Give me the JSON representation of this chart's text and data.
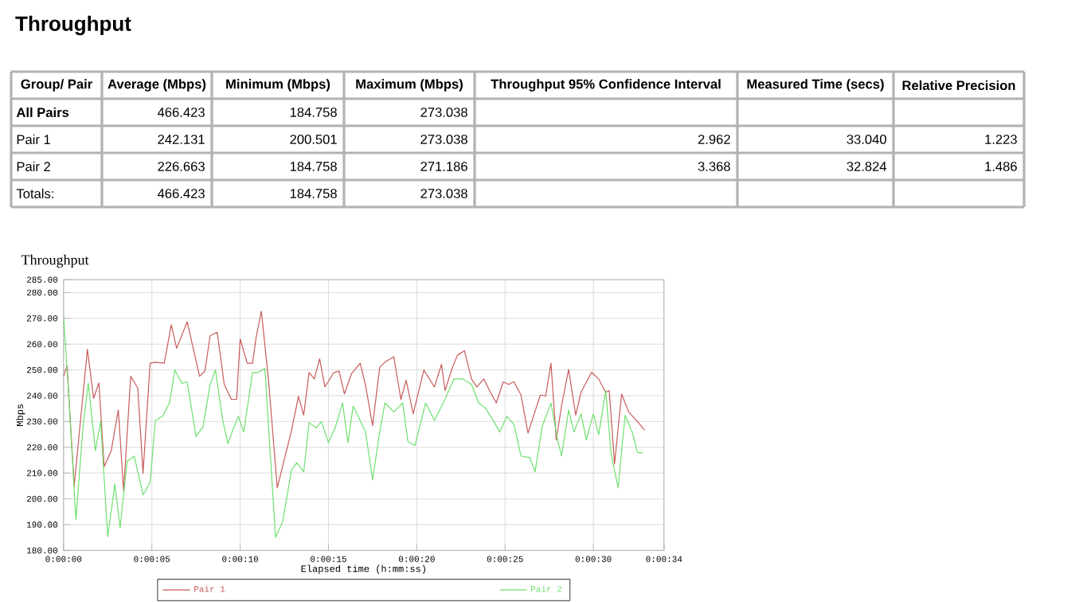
{
  "chart_data": [
    {
      "type": "other",
      "title": "Throughput",
      "categories": [
        "Group/ Pair",
        "Average (Mbps)",
        "Minimum (Mbps)",
        "Maximum (Mbps)",
        "Throughput 95% Confidence Interval",
        "Measured Time (secs)",
        "Relative Precision"
      ],
      "y_categories": [
        "All Pairs",
        "Pair 1",
        "Pair 2",
        "Totals:"
      ],
      "cell_labels": [
        [
          "466.423",
          "184.758",
          "273.038",
          null,
          null,
          null
        ],
        [
          "242.131",
          "200.501",
          "273.038",
          "2.962",
          "33.040",
          "1.223"
        ],
        [
          "226.663",
          "184.758",
          "271.186",
          "3.368",
          "32.824",
          "1.486"
        ],
        [
          "466.423",
          "184.758",
          "273.038",
          null,
          null,
          null
        ]
      ]
    },
    {
      "type": "line",
      "title": "Throughput",
      "xlabel": "Elapsed time (h:mm:ss)",
      "ylabel": "Mbps",
      "xlim": [
        0,
        34
      ],
      "ylim": [
        180,
        285
      ],
      "xticks": [
        {
          "value": 0,
          "label": "0:00:00"
        },
        {
          "value": 5,
          "label": "0:00:05"
        },
        {
          "value": 10,
          "label": "0:00:10"
        },
        {
          "value": 15,
          "label": "0:00:15"
        },
        {
          "value": 20,
          "label": "0:00:20"
        },
        {
          "value": 25,
          "label": "0:00:25"
        },
        {
          "value": 30,
          "label": "0:00:30"
        },
        {
          "value": 34,
          "label": "0:00:34"
        }
      ],
      "yticks": [
        {
          "value": 180,
          "label": "180.00"
        },
        {
          "value": 190,
          "label": "190.00"
        },
        {
          "value": 200,
          "label": "200.00"
        },
        {
          "value": 210,
          "label": "210.00"
        },
        {
          "value": 220,
          "label": "220.00"
        },
        {
          "value": 230,
          "label": "230.00"
        },
        {
          "value": 240,
          "label": "240.00"
        },
        {
          "value": 250,
          "label": "250.00"
        },
        {
          "value": 260,
          "label": "260.00"
        },
        {
          "value": 270,
          "label": "270.00"
        },
        {
          "value": 280,
          "label": "280.00"
        },
        {
          "value": 285,
          "label": "285.00"
        }
      ],
      "grid": true,
      "legend": "bottom",
      "series": [
        {
          "name": "Pair 1",
          "color": "#c85a5a",
          "x": [
            0,
            0.2,
            0.6,
            1.35,
            1.7,
            2.0,
            2.3,
            2.7,
            3.1,
            3.4,
            3.8,
            4.2,
            4.5,
            4.9,
            5.2,
            5.7,
            6.1,
            6.4,
            7.0,
            7.7,
            8.0,
            8.3,
            8.7,
            9.1,
            9.5,
            9.8,
            10.0,
            10.4,
            10.7,
            10.9,
            11.2,
            11.6,
            12.1,
            12.9,
            13.3,
            13.6,
            13.9,
            14.2,
            14.5,
            14.8,
            15.3,
            15.6,
            15.9,
            16.3,
            16.8,
            17.1,
            17.5,
            17.9,
            18.2,
            18.7,
            19.1,
            19.4,
            19.8,
            20.4,
            21.0,
            21.4,
            21.6,
            22.0,
            22.3,
            22.7,
            23.1,
            23.4,
            23.8,
            24.1,
            24.5,
            24.9,
            25.2,
            25.5,
            25.9,
            26.3,
            26.7,
            27.0,
            27.3,
            27.6,
            27.9,
            28.2,
            28.6,
            29.0,
            29.3,
            29.9,
            30.3,
            30.7,
            30.9,
            31.2,
            31.6,
            32.0,
            32.5,
            32.9
          ],
          "values": [
            247.5,
            251.6,
            205,
            258,
            239,
            245,
            212.5,
            218.7,
            234.5,
            203,
            247.5,
            243,
            210,
            252.6,
            253,
            252.6,
            267.5,
            258.4,
            268.7,
            247.5,
            249.5,
            263.3,
            264.6,
            244.4,
            238.6,
            238.6,
            262,
            252.6,
            252.6,
            262.5,
            272.8,
            246.5,
            204.3,
            226.3,
            239.7,
            232.5,
            249,
            246.5,
            254.3,
            243.4,
            249,
            249.5,
            240.7,
            248.5,
            252.6,
            244,
            228.4,
            251,
            253,
            255.1,
            238.6,
            246,
            233,
            250,
            243.4,
            252.2,
            242,
            250.6,
            255.7,
            257.4,
            246.5,
            243.4,
            246.5,
            242.3,
            237.2,
            245.4,
            244.4,
            245.4,
            240.3,
            225.5,
            234,
            240.3,
            239.9,
            252.6,
            222.8,
            236.2,
            250.2,
            232.5,
            241.3,
            249.1,
            246.5,
            241.3,
            242,
            213.5,
            240.7,
            233.7,
            230,
            226.7
          ]
        },
        {
          "name": "Pair 2",
          "color": "#6ee06e",
          "x": [
            0,
            0.3,
            0.7,
            1.1,
            1.4,
            1.8,
            2.1,
            2.5,
            2.9,
            3.2,
            3.6,
            4.0,
            4.5,
            4.9,
            5.2,
            5.6,
            6.0,
            6.3,
            6.7,
            7.0,
            7.5,
            7.9,
            8.3,
            8.6,
            9.0,
            9.3,
            9.6,
            9.9,
            10.2,
            10.7,
            11.0,
            11.4,
            12.0,
            12.4,
            12.9,
            13.2,
            13.6,
            13.9,
            14.3,
            14.6,
            15.0,
            15.4,
            15.8,
            16.1,
            16.4,
            17.1,
            17.5,
            17.9,
            18.2,
            18.7,
            19.2,
            19.5,
            19.9,
            20.5,
            21.0,
            21.6,
            22.1,
            22.6,
            23.1,
            23.5,
            23.9,
            24.4,
            24.7,
            25.1,
            25.5,
            25.9,
            26.4,
            26.7,
            27.1,
            27.6,
            28.0,
            28.2,
            28.6,
            28.9,
            29.3,
            29.6,
            30.0,
            30.3,
            30.7,
            31.0,
            31.4,
            31.8,
            32.2,
            32.5,
            32.8
          ],
          "values": [
            271,
            239,
            192,
            228,
            244.8,
            218.7,
            230,
            185.3,
            205.7,
            188.8,
            214.6,
            216.6,
            201.6,
            206.3,
            230.4,
            232,
            237.2,
            250,
            244.8,
            245.4,
            224.2,
            228,
            244.4,
            250,
            231,
            221.4,
            227,
            232,
            225.9,
            249,
            249,
            250.6,
            185.1,
            191,
            211,
            214,
            210.5,
            229.6,
            227.5,
            230,
            221.8,
            228,
            237.2,
            221.8,
            236,
            226,
            207.4,
            225.9,
            237.2,
            233.7,
            237.2,
            222.2,
            220.7,
            237.2,
            230.4,
            238.6,
            246.5,
            246.5,
            244.4,
            237.2,
            235.1,
            229.6,
            225.9,
            232,
            229,
            216.6,
            216,
            210.5,
            228,
            237.2,
            222.2,
            216.6,
            234.5,
            225.9,
            233,
            222.8,
            233,
            224.9,
            242,
            217.7,
            204.3,
            232.5,
            225.9,
            218,
            217.7
          ]
        }
      ]
    }
  ]
}
